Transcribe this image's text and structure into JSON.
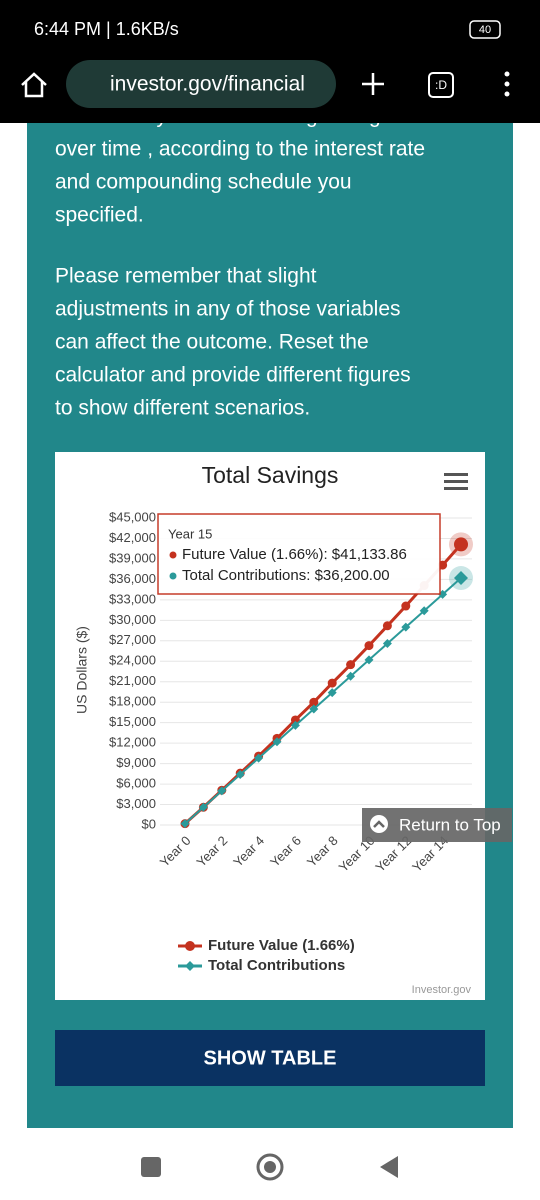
{
  "status_bar": {
    "time": "6:44 PM | 1.6KB/s",
    "battery": "40"
  },
  "browser": {
    "url": "investor.gov/financial",
    "tabs": ":D"
  },
  "paragraphs": [
    [
      "how much your initial savings will grow",
      "over time , according to the interest rate",
      "and compounding schedule you",
      "specified."
    ],
    [
      "Please remember that slight",
      "adjustments in any of those variables",
      "can affect the outcome. Reset the",
      "calculator and provide different figures",
      "to show different scenarios."
    ]
  ],
  "chart_data": {
    "type": "line",
    "title": "Total Savings",
    "y_label": "US Dollars ($)",
    "credit": "Investor.gov",
    "categories": [
      "Year 0",
      null,
      "Year 2",
      null,
      "Year 4",
      null,
      "Year 6",
      null,
      "Year 8",
      null,
      "Year 10",
      null,
      "Year 12",
      null,
      "Year 14",
      null
    ],
    "series": [
      {
        "name": "Future Value (1.66%)",
        "color": "#c4321f",
        "marker": "circle",
        "values": [
          200,
          2600,
          5100,
          7600,
          10100,
          12700,
          15400,
          18000,
          20800,
          23500,
          26300,
          29200,
          32100,
          35100,
          38100,
          41133.86
        ]
      },
      {
        "name": "Total Contributions",
        "color": "#2b9a9a",
        "marker": "diamond",
        "values": [
          200,
          2600,
          5000,
          7400,
          9800,
          12200,
          14600,
          17000,
          19400,
          21800,
          24200,
          26600,
          29000,
          31400,
          33800,
          36200
        ]
      }
    ],
    "ylim": [
      0,
      45000
    ],
    "yticks": [
      {
        "value": 0,
        "label": "$0"
      },
      {
        "value": 3000,
        "label": "$3,000"
      },
      {
        "value": 6000,
        "label": "$6,000"
      },
      {
        "value": 9000,
        "label": "$9,000"
      },
      {
        "value": 12000,
        "label": "$12,000"
      },
      {
        "value": 15000,
        "label": "$15,000"
      },
      {
        "value": 18000,
        "label": "$18,000"
      },
      {
        "value": 21000,
        "label": "$21,000"
      },
      {
        "value": 24000,
        "label": "$24,000"
      },
      {
        "value": 27000,
        "label": "$27,000"
      },
      {
        "value": 30000,
        "label": "$30,000"
      },
      {
        "value": 33000,
        "label": "$33,000"
      },
      {
        "value": 36000,
        "label": "$36,000"
      },
      {
        "value": 39000,
        "label": "$39,000"
      },
      {
        "value": 42000,
        "label": "$42,000"
      },
      {
        "value": 45000,
        "label": "$45,000"
      }
    ],
    "grid": true,
    "tooltip": {
      "title": "Year 15",
      "lines": [
        "Future Value (1.66%): $41,133.86",
        "Total Contributions: $36,200.00"
      ]
    }
  },
  "buttons": {
    "show_table": "SHOW TABLE",
    "return_to_top": "Return to Top"
  }
}
